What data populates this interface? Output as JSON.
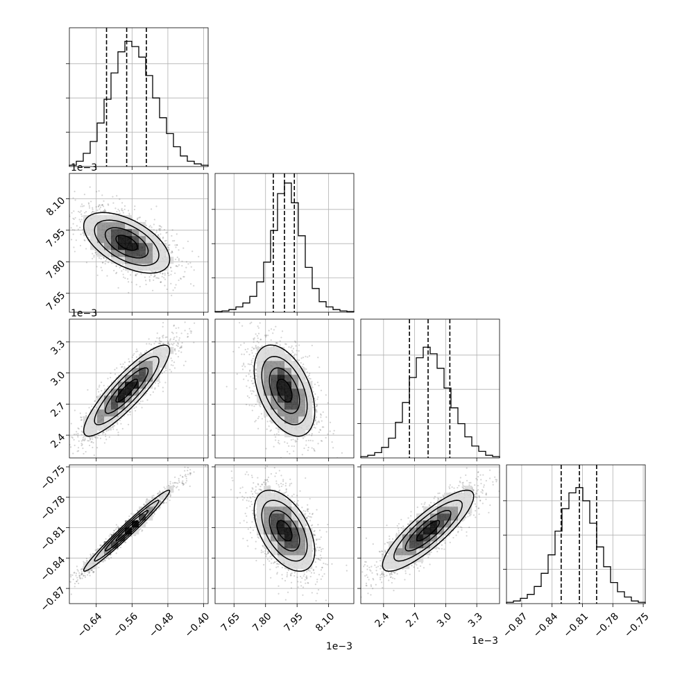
{
  "chart_data": {
    "type": "corner",
    "title": "",
    "grid": true,
    "quantile_lines": "dashed",
    "parameters": [
      {
        "index": 0,
        "range": [
          -0.7,
          -0.39
        ],
        "ticks": [
          -0.64,
          -0.56,
          -0.48,
          -0.4
        ],
        "tick_labels": [
          "−0.64",
          "−0.56",
          "−0.48",
          "−0.40"
        ],
        "offset_label": "",
        "quantiles": [
          -0.617,
          -0.572,
          -0.528
        ],
        "hist_edges": [
          -0.7,
          -0.6845,
          -0.669,
          -0.6535,
          -0.638,
          -0.6225,
          -0.607,
          -0.5915,
          -0.576,
          -0.5605,
          -0.545,
          -0.5295,
          -0.514,
          -0.4985,
          -0.483,
          -0.4675,
          -0.452,
          -0.4365,
          -0.421,
          -0.4055,
          -0.39
        ],
        "hist_counts": [
          0.01,
          0.04,
          0.1,
          0.19,
          0.33,
          0.51,
          0.71,
          0.87,
          0.95,
          0.91,
          0.83,
          0.69,
          0.52,
          0.37,
          0.25,
          0.15,
          0.08,
          0.04,
          0.02,
          0.01
        ]
      },
      {
        "index": 1,
        "range": [
          7.56,
          8.22
        ],
        "ticks": [
          7.65,
          7.8,
          7.95,
          8.1
        ],
        "tick_labels": [
          "7.65",
          "7.80",
          "7.95",
          "8.10"
        ],
        "offset_label": "1e−3",
        "quantiles": [
          7.837,
          7.89,
          7.937
        ],
        "hist_edges": [
          7.56,
          7.593,
          7.626,
          7.659,
          7.692,
          7.725,
          7.758,
          7.791,
          7.824,
          7.857,
          7.89,
          7.923,
          7.956,
          7.989,
          8.022,
          8.055,
          8.088,
          8.121,
          8.154,
          8.187,
          8.22
        ],
        "hist_counts": [
          0.005,
          0.01,
          0.02,
          0.04,
          0.07,
          0.12,
          0.23,
          0.38,
          0.62,
          0.9,
          0.98,
          0.83,
          0.58,
          0.34,
          0.18,
          0.08,
          0.04,
          0.02,
          0.01,
          0.005
        ]
      },
      {
        "index": 2,
        "range": [
          2.18,
          3.52
        ],
        "ticks": [
          2.4,
          2.7,
          3.0,
          3.3
        ],
        "tick_labels": [
          "2.4",
          "2.7",
          "3.0",
          "3.3"
        ],
        "offset_label": "1e−3",
        "quantiles": [
          2.65,
          2.83,
          3.04
        ],
        "hist_edges": [
          2.18,
          2.247,
          2.314,
          2.381,
          2.448,
          2.515,
          2.582,
          2.649,
          2.716,
          2.783,
          2.85,
          2.917,
          2.984,
          3.051,
          3.118,
          3.185,
          3.252,
          3.319,
          3.386,
          3.453,
          3.52
        ],
        "hist_counts": [
          0.01,
          0.02,
          0.04,
          0.08,
          0.15,
          0.27,
          0.42,
          0.61,
          0.76,
          0.84,
          0.79,
          0.68,
          0.53,
          0.38,
          0.26,
          0.16,
          0.09,
          0.05,
          0.02,
          0.01
        ]
      },
      {
        "index": 3,
        "range": [
          -0.885,
          -0.748
        ],
        "ticks": [
          -0.87,
          -0.84,
          -0.81,
          -0.78,
          -0.75
        ],
        "tick_labels": [
          "−0.87",
          "−0.84",
          "−0.81",
          "−0.78",
          "−0.75"
        ],
        "offset_label": "",
        "quantiles": [
          -0.831,
          -0.813,
          -0.796
        ],
        "hist_edges": [
          -0.885,
          -0.87815,
          -0.8713,
          -0.86445,
          -0.8576,
          -0.85075,
          -0.8439,
          -0.83705,
          -0.8302,
          -0.82335,
          -0.8165,
          -0.80965,
          -0.8028,
          -0.79595,
          -0.7891,
          -0.78225,
          -0.7754,
          -0.76855,
          -0.7617,
          -0.75485,
          -0.748
        ],
        "hist_counts": [
          0.01,
          0.02,
          0.04,
          0.07,
          0.13,
          0.23,
          0.37,
          0.55,
          0.72,
          0.84,
          0.88,
          0.78,
          0.61,
          0.43,
          0.28,
          0.16,
          0.09,
          0.05,
          0.02,
          0.01
        ]
      }
    ],
    "pairs": [
      {
        "x": 0,
        "y": 1,
        "mean": [
          -0.572,
          7.89
        ],
        "sigma": [
          0.048,
          0.072
        ],
        "rho": -0.55
      },
      {
        "x": 0,
        "y": 2,
        "mean": [
          -0.572,
          2.83
        ],
        "sigma": [
          0.048,
          0.22
        ],
        "rho": 0.88
      },
      {
        "x": 1,
        "y": 2,
        "mean": [
          7.89,
          2.83
        ],
        "sigma": [
          0.072,
          0.22
        ],
        "rho": -0.45
      },
      {
        "x": 0,
        "y": 3,
        "mean": [
          -0.572,
          -0.813
        ],
        "sigma": [
          0.048,
          0.02
        ],
        "rho": 0.98
      },
      {
        "x": 1,
        "y": 3,
        "mean": [
          7.89,
          -0.813
        ],
        "sigma": [
          0.072,
          0.02
        ],
        "rho": -0.5
      },
      {
        "x": 2,
        "y": 3,
        "mean": [
          2.83,
          -0.813
        ],
        "sigma": [
          0.22,
          0.02
        ],
        "rho": 0.85
      }
    ],
    "contour_levels": [
      0.118,
      0.393,
      0.675,
      0.865
    ]
  }
}
